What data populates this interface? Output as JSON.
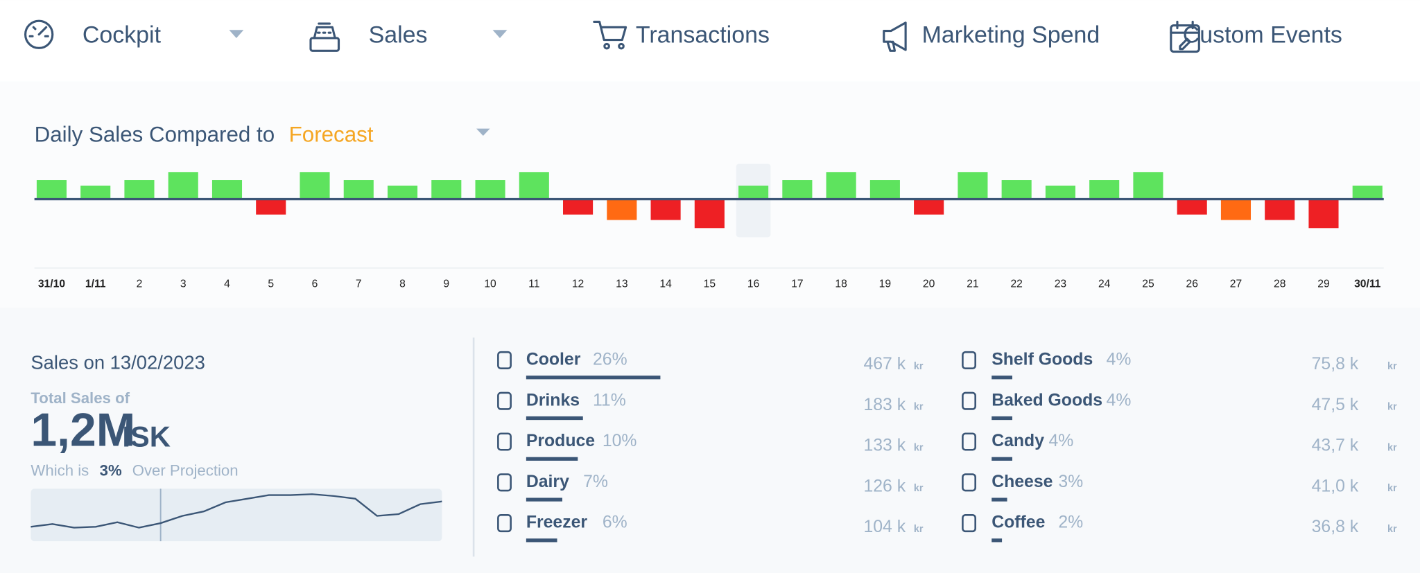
{
  "nav": [
    {
      "label": "Cockpit",
      "dropdown": true
    },
    {
      "label": "Sales",
      "dropdown": true
    },
    {
      "label": "Transactions",
      "dropdown": false
    },
    {
      "label": "Marketing Spend",
      "dropdown": false
    },
    {
      "label": "Custom Events",
      "dropdown": false
    }
  ],
  "chart_data": {
    "type": "bar",
    "title": "Daily Sales Compared to",
    "title_highlight": "Forecast",
    "categories": [
      "31/10",
      "1/11",
      "2",
      "3",
      "4",
      "5",
      "6",
      "7",
      "8",
      "9",
      "10",
      "11",
      "12",
      "13",
      "14",
      "15",
      "16",
      "17",
      "18",
      "19",
      "20",
      "21",
      "22",
      "23",
      "24",
      "25",
      "26",
      "27",
      "28",
      "29",
      "30/11"
    ],
    "values": [
      21,
      15,
      21,
      30,
      21,
      -17,
      30,
      21,
      15,
      21,
      21,
      30,
      -17,
      -23,
      -23,
      -32,
      15,
      21,
      30,
      21,
      -17,
      30,
      21,
      15,
      21,
      30,
      -17,
      -23,
      -23,
      -32,
      15
    ],
    "colors": [
      "#5ee35e",
      "#5ee35e",
      "#5ee35e",
      "#5ee35e",
      "#5ee35e",
      "#ee2024",
      "#5ee35e",
      "#5ee35e",
      "#5ee35e",
      "#5ee35e",
      "#5ee35e",
      "#5ee35e",
      "#ee2024",
      "#ff6a13",
      "#ee2024",
      "#ee2024",
      "#5ee35e",
      "#5ee35e",
      "#5ee35e",
      "#5ee35e",
      "#ee2024",
      "#5ee35e",
      "#5ee35e",
      "#5ee35e",
      "#5ee35e",
      "#5ee35e",
      "#ee2024",
      "#ff6a13",
      "#ee2024",
      "#ee2024",
      "#5ee35e"
    ],
    "selected_index": 16
  },
  "summary": {
    "heading": "Sales on 13/02/2023",
    "total_label": "Total Sales of",
    "total": "1,2M",
    "currency_code": "ISK",
    "which_is": "Which is",
    "projection": "3%",
    "projection_text": "Over Projection"
  },
  "sparkline": {
    "values": [
      16,
      19,
      15,
      16,
      21,
      15,
      20,
      28,
      33,
      43,
      47,
      51,
      51,
      52,
      50,
      47,
      28,
      30,
      41,
      44
    ],
    "marker_index": 6
  },
  "currency": "kr",
  "segments": [
    {
      "name": "Cooler",
      "share": 26,
      "share_label": "26%",
      "amount": "467 k"
    },
    {
      "name": "Drinks",
      "share": 11,
      "share_label": "11%",
      "amount": "183 k"
    },
    {
      "name": "Produce",
      "share": 10,
      "share_label": "10%",
      "amount": "133 k"
    },
    {
      "name": "Dairy",
      "share": 7,
      "share_label": "7%",
      "amount": "126 k"
    },
    {
      "name": "Freezer",
      "share": 6,
      "share_label": "6%",
      "amount": "104 k"
    },
    {
      "name": "Shelf Goods",
      "share": 4,
      "share_label": "4%",
      "amount": "75,8 k"
    },
    {
      "name": "Baked Goods",
      "share": 4,
      "share_label": "4%",
      "amount": "47,5 k"
    },
    {
      "name": "Candy",
      "share": 4,
      "share_label": "4%",
      "amount": "43,7 k"
    },
    {
      "name": "Cheese",
      "share": 3,
      "share_label": "3%",
      "amount": "41,0 k"
    },
    {
      "name": "Coffee",
      "share": 2,
      "share_label": "2%",
      "amount": "36,8 k"
    }
  ]
}
